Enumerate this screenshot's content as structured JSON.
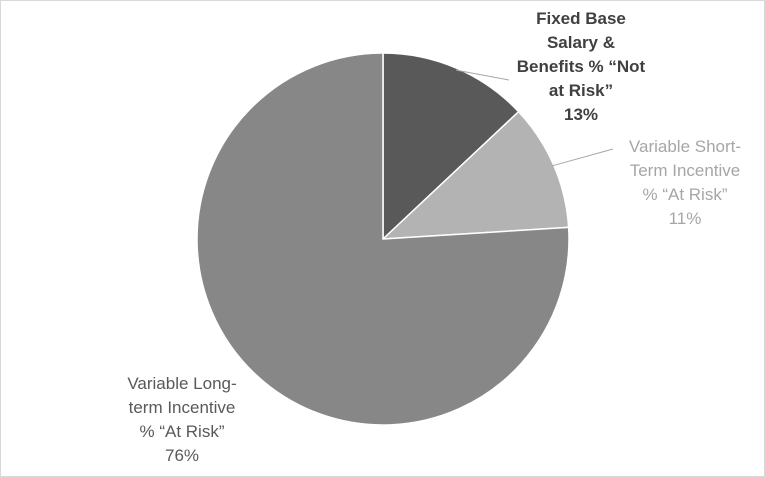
{
  "chart_data": {
    "type": "pie",
    "title": "",
    "slices": [
      {
        "label_lines": [
          "Fixed Base",
          "Salary &",
          "Benefits % “Not",
          "at Risk”"
        ],
        "value_label": "13%",
        "value": 13,
        "color": "#595959",
        "label_color": "#404040"
      },
      {
        "label_lines": [
          "Variable Short-",
          "Term Incentive",
          "% “At Risk”"
        ],
        "value_label": "11%",
        "value": 11,
        "color": "#b3b3b3",
        "label_color": "#a6a6a6"
      },
      {
        "label_lines": [
          "Variable Long-",
          "term Incentive",
          "% “At Risk”"
        ],
        "value_label": "76%",
        "value": 76,
        "color": "#878787",
        "label_color": "#595959"
      }
    ],
    "start_angle_deg": 0,
    "direction": "clockwise",
    "slice_border_color": "#ffffff",
    "leader_line_color": "#a6a6a6",
    "legend": "none"
  }
}
